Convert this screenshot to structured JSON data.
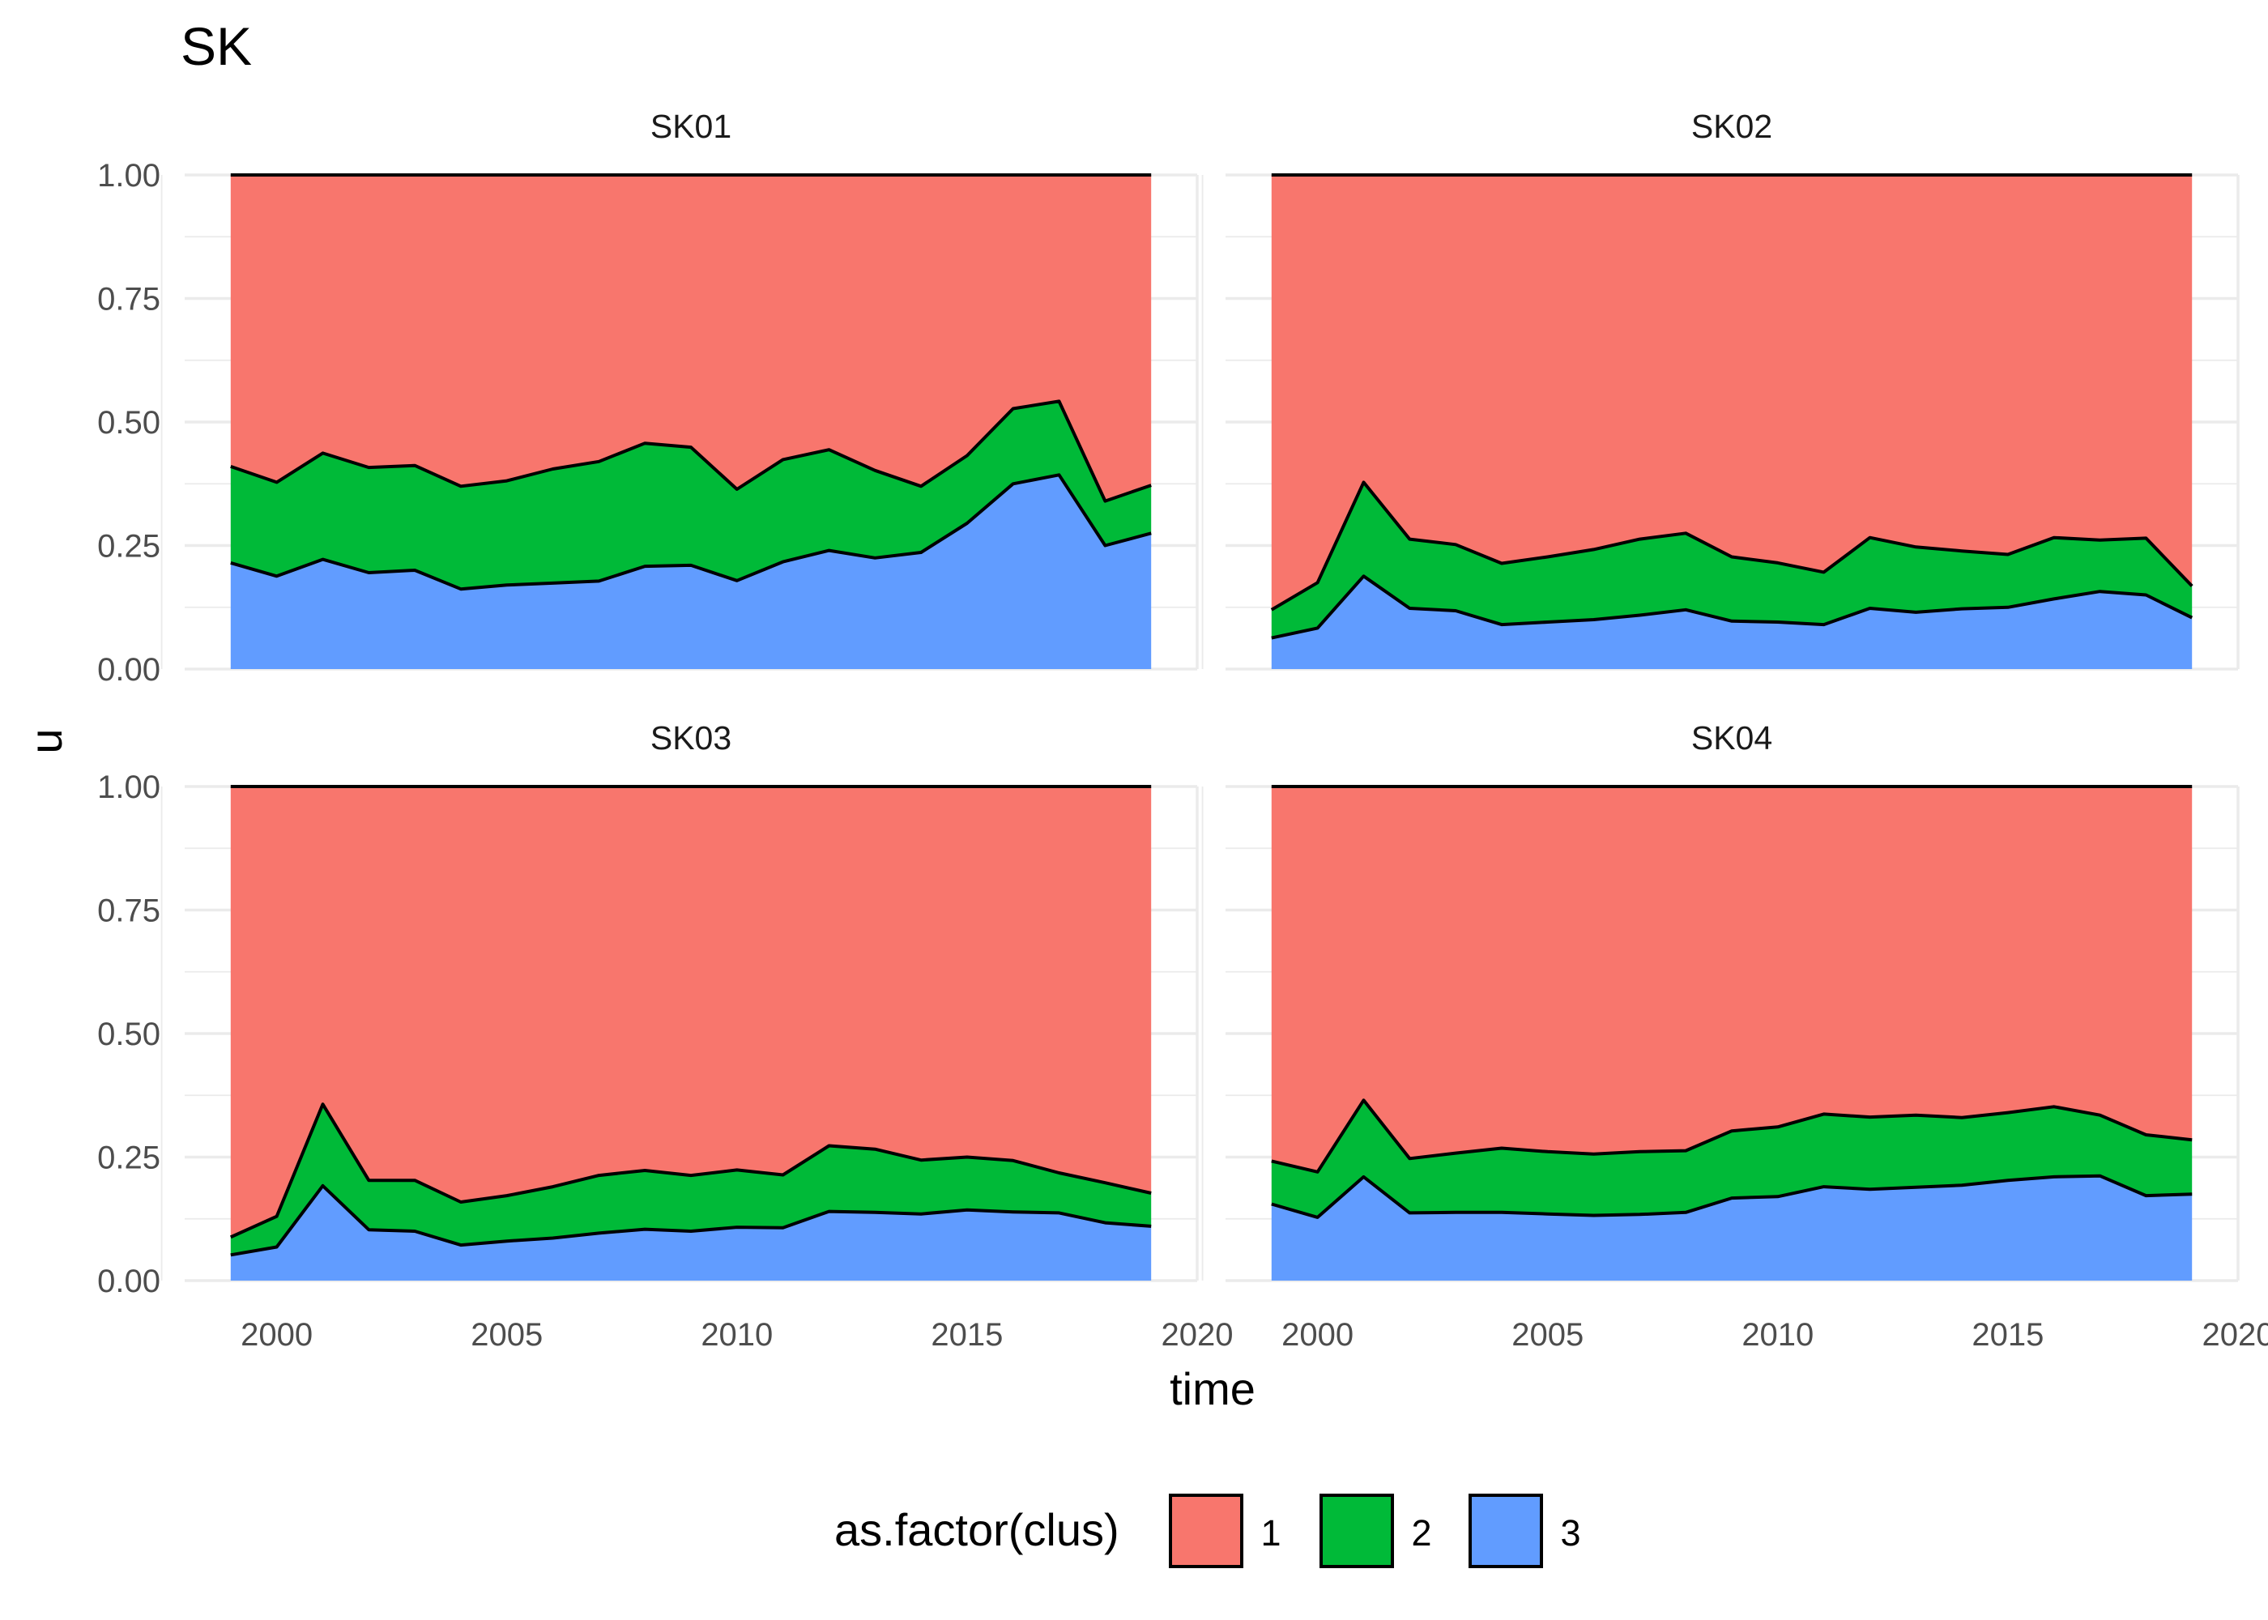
{
  "chart_data": {
    "type": "area",
    "title": "SK",
    "xlabel": "time",
    "ylabel": "u",
    "xlim": [
      1998,
      2020
    ],
    "ylim": [
      0,
      1
    ],
    "x_ticks": [
      "2000",
      "2005",
      "2010",
      "2015",
      "2020"
    ],
    "y_ticks": [
      "0.00",
      "0.25",
      "0.50",
      "0.75",
      "1.00"
    ],
    "stacked": true,
    "grid": true,
    "legend": {
      "title": "as.factor(clus)",
      "position": "bottom",
      "items": [
        {
          "label": "1",
          "color": "#F8766D"
        },
        {
          "label": "2",
          "color": "#00BA38"
        },
        {
          "label": "3",
          "color": "#619CFF"
        }
      ]
    },
    "x": [
      1999,
      2000,
      2001,
      2002,
      2003,
      2004,
      2005,
      2006,
      2007,
      2008,
      2009,
      2010,
      2011,
      2012,
      2013,
      2014,
      2015,
      2016,
      2017,
      2018,
      2019
    ],
    "panels": [
      {
        "name": "SK01",
        "series": [
          {
            "name": "3",
            "values": [
              0.215,
              0.188,
              0.222,
              0.195,
              0.2,
              0.162,
              0.17,
              0.174,
              0.178,
              0.208,
              0.21,
              0.179,
              0.217,
              0.24,
              0.225,
              0.236,
              0.295,
              0.375,
              0.393,
              0.25,
              0.275
            ]
          },
          {
            "name": "2",
            "values": [
              0.195,
              0.19,
              0.215,
              0.213,
              0.212,
              0.208,
              0.211,
              0.231,
              0.242,
              0.249,
              0.239,
              0.185,
              0.207,
              0.204,
              0.177,
              0.134,
              0.137,
              0.152,
              0.149,
              0.09,
              0.097
            ]
          },
          {
            "name": "1",
            "values": [
              0.59,
              0.622,
              0.563,
              0.592,
              0.588,
              0.63,
              0.619,
              0.595,
              0.58,
              0.543,
              0.551,
              0.636,
              0.576,
              0.556,
              0.598,
              0.63,
              0.568,
              0.473,
              0.458,
              0.66,
              0.628
            ]
          }
        ]
      },
      {
        "name": "SK02",
        "series": [
          {
            "name": "3",
            "values": [
              0.063,
              0.083,
              0.188,
              0.123,
              0.118,
              0.09,
              0.095,
              0.1,
              0.109,
              0.12,
              0.097,
              0.095,
              0.09,
              0.123,
              0.115,
              0.122,
              0.125,
              0.142,
              0.157,
              0.15,
              0.104
            ]
          },
          {
            "name": "2",
            "values": [
              0.057,
              0.092,
              0.19,
              0.14,
              0.134,
              0.124,
              0.132,
              0.142,
              0.154,
              0.155,
              0.13,
              0.12,
              0.106,
              0.143,
              0.132,
              0.117,
              0.107,
              0.124,
              0.104,
              0.115,
              0.064
            ]
          },
          {
            "name": "1",
            "values": [
              0.88,
              0.825,
              0.622,
              0.737,
              0.748,
              0.786,
              0.773,
              0.758,
              0.737,
              0.725,
              0.773,
              0.785,
              0.804,
              0.734,
              0.753,
              0.761,
              0.768,
              0.734,
              0.739,
              0.735,
              0.832
            ]
          }
        ]
      },
      {
        "name": "SK03",
        "series": [
          {
            "name": "3",
            "values": [
              0.052,
              0.068,
              0.192,
              0.103,
              0.1,
              0.072,
              0.08,
              0.086,
              0.096,
              0.104,
              0.1,
              0.108,
              0.107,
              0.14,
              0.138,
              0.135,
              0.143,
              0.139,
              0.137,
              0.117,
              0.11
            ]
          },
          {
            "name": "2",
            "values": [
              0.036,
              0.062,
              0.165,
              0.1,
              0.103,
              0.087,
              0.092,
              0.104,
              0.117,
              0.119,
              0.113,
              0.116,
              0.107,
              0.133,
              0.128,
              0.109,
              0.107,
              0.104,
              0.081,
              0.081,
              0.067
            ]
          },
          {
            "name": "1",
            "values": [
              0.912,
              0.87,
              0.643,
              0.797,
              0.797,
              0.841,
              0.828,
              0.81,
              0.787,
              0.777,
              0.787,
              0.776,
              0.786,
              0.727,
              0.734,
              0.756,
              0.75,
              0.757,
              0.782,
              0.802,
              0.823
            ]
          }
        ]
      },
      {
        "name": "SK04",
        "series": [
          {
            "name": "3",
            "values": [
              0.155,
              0.128,
              0.21,
              0.137,
              0.138,
              0.138,
              0.135,
              0.132,
              0.134,
              0.138,
              0.167,
              0.17,
              0.19,
              0.185,
              0.189,
              0.193,
              0.203,
              0.21,
              0.212,
              0.172,
              0.175
            ]
          },
          {
            "name": "2",
            "values": [
              0.087,
              0.092,
              0.155,
              0.11,
              0.12,
              0.13,
              0.126,
              0.124,
              0.127,
              0.125,
              0.136,
              0.141,
              0.147,
              0.146,
              0.146,
              0.137,
              0.137,
              0.142,
              0.123,
              0.123,
              0.11
            ]
          },
          {
            "name": "1",
            "values": [
              0.758,
              0.78,
              0.635,
              0.753,
              0.742,
              0.732,
              0.739,
              0.744,
              0.739,
              0.737,
              0.697,
              0.689,
              0.663,
              0.669,
              0.665,
              0.67,
              0.66,
              0.648,
              0.665,
              0.705,
              0.715
            ]
          }
        ]
      }
    ]
  }
}
